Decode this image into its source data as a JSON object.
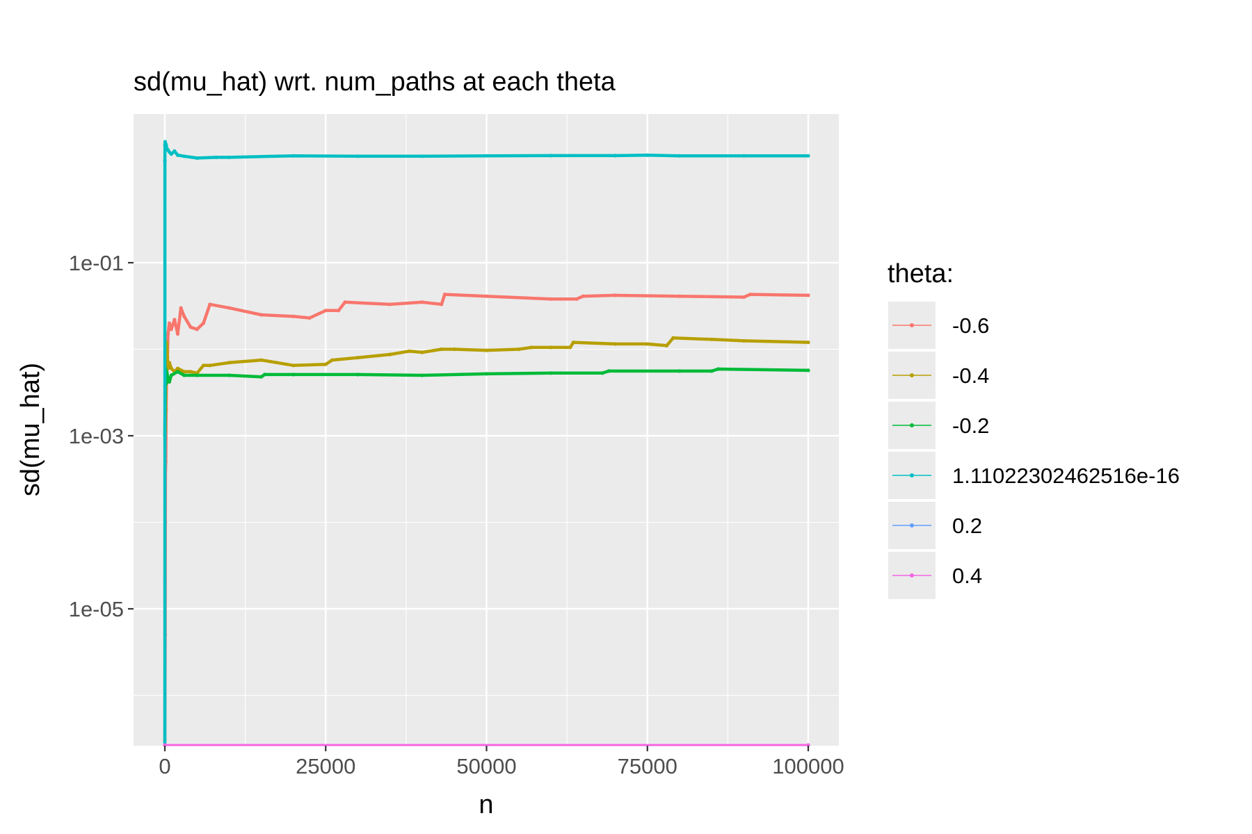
{
  "chart_data": {
    "type": "line",
    "title": "sd(mu_hat) wrt. num_paths at each theta",
    "xlabel": "n",
    "ylabel": "sd(mu_hat)",
    "x_scale": "linear",
    "y_scale": "log10",
    "xlim": [
      -4000,
      104000
    ],
    "ylim": [
      1.5e-07,
      6
    ],
    "x_ticks": [
      0,
      25000,
      50000,
      75000,
      100000
    ],
    "x_tick_labels": [
      "0",
      "25000",
      "50000",
      "75000",
      "100000"
    ],
    "y_ticks": [
      0.1,
      0.001,
      1e-05
    ],
    "y_tick_labels": [
      "1e-01",
      "1e-03",
      "1e-05"
    ],
    "grid": true,
    "background": "#ebebeb",
    "legend": {
      "title": "theta:",
      "position": "right",
      "entries": [
        {
          "label": "-0.6",
          "color": "#F8766D"
        },
        {
          "label": "-0.4",
          "color": "#B79F00"
        },
        {
          "label": "-0.2",
          "color": "#00BA38"
        },
        {
          "label": "1.11022302462516e-16",
          "color": "#00BFC4"
        },
        {
          "label": "0.2",
          "color": "#619CFF"
        },
        {
          "label": "0.4",
          "color": "#F564E3"
        }
      ]
    },
    "series": [
      {
        "name": "-0.6",
        "color": "#F8766D",
        "x": [
          5,
          50,
          80,
          100,
          150,
          200,
          250,
          300,
          400,
          500,
          700,
          1000,
          1500,
          2000,
          2500,
          3000,
          4000,
          5000,
          6000,
          7000,
          10000,
          15000,
          20000,
          22500,
          25000,
          27000,
          28000,
          35000,
          40000,
          43000,
          43500,
          50000,
          60000,
          64000,
          65000,
          70000,
          80000,
          90000,
          91000,
          100000
        ],
        "y": [
          3e-07,
          5e-06,
          0.0001,
          0.0004,
          0.0005,
          0.002,
          0.004,
          0.006,
          0.008,
          0.015,
          0.02,
          0.017,
          0.022,
          0.015,
          0.03,
          0.024,
          0.018,
          0.017,
          0.02,
          0.033,
          0.03,
          0.025,
          0.024,
          0.023,
          0.028,
          0.028,
          0.035,
          0.033,
          0.035,
          0.033,
          0.043,
          0.041,
          0.038,
          0.038,
          0.041,
          0.042,
          0.041,
          0.04,
          0.043,
          0.042
        ]
      },
      {
        "name": "-0.4",
        "color": "#B79F00",
        "x": [
          5,
          60,
          100,
          150,
          200,
          300,
          400,
          500,
          700,
          1000,
          1500,
          2000,
          3000,
          4000,
          5000,
          6000,
          7000,
          10000,
          15000,
          20000,
          25000,
          26000,
          30000,
          35000,
          38000,
          40000,
          43000,
          45000,
          50000,
          55000,
          57000,
          60000,
          63000,
          63500,
          70000,
          75000,
          78000,
          79000,
          85000,
          90000,
          100000
        ],
        "y": [
          0.001,
          0.0012,
          0.002,
          0.004,
          0.01,
          0.012,
          0.008,
          0.006,
          0.007,
          0.006,
          0.0055,
          0.006,
          0.0055,
          0.0055,
          0.0053,
          0.0065,
          0.0065,
          0.007,
          0.0075,
          0.0065,
          0.0067,
          0.0075,
          0.008,
          0.0087,
          0.0095,
          0.0092,
          0.01,
          0.01,
          0.0097,
          0.01,
          0.0105,
          0.0105,
          0.0105,
          0.012,
          0.0115,
          0.0115,
          0.011,
          0.0135,
          0.013,
          0.0125,
          0.012
        ]
      },
      {
        "name": "-0.2",
        "color": "#00BA38",
        "x": [
          5,
          50,
          100,
          150,
          200,
          300,
          500,
          700,
          1000,
          2000,
          3000,
          5000,
          10000,
          15000,
          15500,
          20000,
          30000,
          40000,
          50000,
          60000,
          68000,
          69000,
          80000,
          85000,
          86000,
          100000
        ],
        "y": [
          0.001,
          0.003,
          0.006,
          0.004,
          0.004,
          0.0055,
          0.0045,
          0.0042,
          0.005,
          0.0055,
          0.005,
          0.005,
          0.005,
          0.0048,
          0.0051,
          0.0051,
          0.0051,
          0.005,
          0.0052,
          0.0053,
          0.0053,
          0.0056,
          0.0056,
          0.0056,
          0.0059,
          0.0057
        ]
      },
      {
        "name": "1.11022302462516e-16",
        "color": "#00BFC4",
        "x": [
          5,
          8,
          20,
          50,
          100,
          200,
          300,
          500,
          700,
          1000,
          1500,
          2000,
          3000,
          5000,
          8000,
          10000,
          20000,
          30000,
          40000,
          50000,
          60000,
          70000,
          75000,
          80000,
          90000,
          100000
        ],
        "y": [
          1.5e-07,
          1.5,
          2.3,
          2.5,
          2.4,
          2.3,
          2.1,
          2,
          1.9,
          1.8,
          1.95,
          1.75,
          1.7,
          1.62,
          1.65,
          1.65,
          1.72,
          1.7,
          1.7,
          1.72,
          1.73,
          1.73,
          1.75,
          1.72,
          1.72,
          1.72
        ]
      },
      {
        "name": "0.2",
        "color": "#619CFF",
        "x": [
          0,
          100000
        ],
        "y": [
          1.5e-07,
          1.5e-07
        ]
      },
      {
        "name": "0.4",
        "color": "#F564E3",
        "x": [
          0,
          100000
        ],
        "y": [
          1.5e-07,
          1.5e-07
        ]
      }
    ]
  }
}
